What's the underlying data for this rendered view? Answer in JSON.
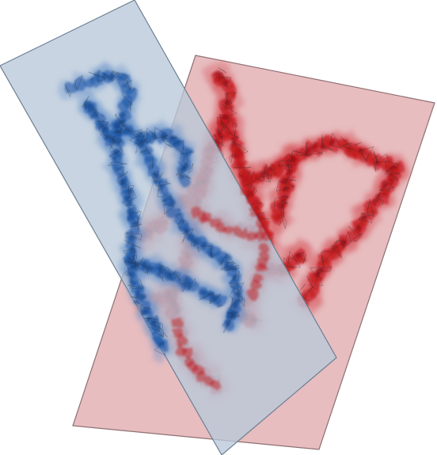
{
  "scene": {
    "description_label": "",
    "background": "#ffffff",
    "blue_plane": {
      "fill": "#b9c8d8",
      "edge": "#6d7f93",
      "opacity": 0.85
    },
    "red_plane": {
      "fill": "#e3b2b4",
      "edge": "#8f6f73",
      "opacity": 0.85
    },
    "blue_volume": {
      "color": "#1e58a8",
      "dark": "#0f3d82",
      "light": "#5e8cc9"
    },
    "red_volume": {
      "color": "#c4161c",
      "dark": "#8e0e12",
      "light": "#d85a5e"
    },
    "mesh_line": "#2a2a2a"
  }
}
